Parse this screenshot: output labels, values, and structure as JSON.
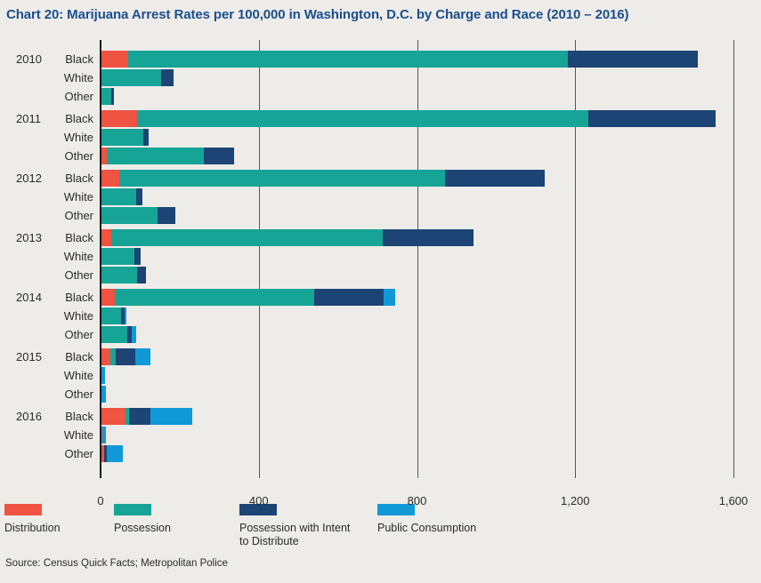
{
  "title": "Chart 20: Marijuana Arrest Rates per 100,000 in Washington, D.C. by Charge and Race (2010 – 2016)",
  "source": "Source: Census Quick Facts; Metropolitan Police",
  "colors": {
    "background": "#EDECE9",
    "title_text": "#1B4E8C",
    "body_text": "#2B2B2B",
    "axis_line": "#1A1A1A",
    "gridline": "#55565A",
    "distribution": "#EF5342",
    "possession": "#16A496",
    "possession_with_intent": "#1C4474",
    "public_consumption": "#1099D6"
  },
  "legend": {
    "items": [
      {
        "label": "Distribution",
        "color_key": "distribution"
      },
      {
        "label": "Possession",
        "color_key": "possession"
      },
      {
        "label": "Possession with Intent to Distribute",
        "color_key": "possession_with_intent"
      },
      {
        "label": "Public Consumption",
        "color_key": "public_consumption"
      }
    ],
    "position": "bottom"
  },
  "chart_data": {
    "type": "bar",
    "orientation": "horizontal",
    "stacked": true,
    "title": "Chart 20: Marijuana Arrest Rates per 100,000 in Washington, D.C. by Charge and Race (2010 – 2016)",
    "unit": "arrests per 100,000",
    "xlim": [
      0,
      1600
    ],
    "grid": "vertical",
    "x_ticks": [
      {
        "value": 0,
        "label": "0"
      },
      {
        "value": 400,
        "label": "400"
      },
      {
        "value": 800,
        "label": "800"
      },
      {
        "value": 1200,
        "label": "1,200"
      },
      {
        "value": 1600,
        "label": "1,600"
      }
    ],
    "series": [
      {
        "name": "Distribution",
        "color_key": "distribution"
      },
      {
        "name": "Possession",
        "color_key": "possession"
      },
      {
        "name": "Possession with Intent to Distribute",
        "color_key": "possession_with_intent"
      },
      {
        "name": "Public Consumption",
        "color_key": "public_consumption"
      }
    ],
    "groups": [
      {
        "year": "2010",
        "rows": [
          {
            "race": "Black",
            "values": [
              69,
              1112,
              328,
              0
            ]
          },
          {
            "race": "White",
            "values": [
              0,
              152,
              32,
              0
            ]
          },
          {
            "race": "Other",
            "values": [
              0,
              28,
              6,
              0
            ]
          }
        ]
      },
      {
        "year": "2011",
        "rows": [
          {
            "race": "Black",
            "values": [
              93,
              1140,
              322,
              0
            ]
          },
          {
            "race": "White",
            "values": [
              0,
              107,
              15,
              0
            ]
          },
          {
            "race": "Other",
            "values": [
              16,
              245,
              77,
              0
            ]
          }
        ]
      },
      {
        "year": "2012",
        "rows": [
          {
            "race": "Black",
            "values": [
              47,
              824,
              253,
              0
            ]
          },
          {
            "race": "White",
            "values": [
              0,
              91,
              15,
              0
            ]
          },
          {
            "race": "Other",
            "values": [
              3,
              142,
              45,
              0
            ]
          }
        ]
      },
      {
        "year": "2013",
        "rows": [
          {
            "race": "Black",
            "values": [
              26,
              688,
              228,
              0
            ]
          },
          {
            "race": "White",
            "values": [
              0,
              86,
              16,
              0
            ]
          },
          {
            "race": "Other",
            "values": [
              0,
              93,
              22,
              0
            ]
          }
        ]
      },
      {
        "year": "2014",
        "rows": [
          {
            "race": "Black",
            "values": [
              37,
              502,
              176,
              31
            ]
          },
          {
            "race": "White",
            "values": [
              3,
              49,
              8,
              5
            ]
          },
          {
            "race": "Other",
            "values": [
              3,
              64,
              11,
              13
            ]
          }
        ]
      },
      {
        "year": "2015",
        "rows": [
          {
            "race": "Black",
            "values": [
              25,
              13,
              49,
              38
            ]
          },
          {
            "race": "White",
            "values": [
              0,
              3,
              0,
              8
            ]
          },
          {
            "race": "Other",
            "values": [
              0,
              2,
              0,
              12
            ]
          }
        ]
      },
      {
        "year": "2016",
        "rows": [
          {
            "race": "Black",
            "values": [
              63,
              8,
              56,
              105
            ]
          },
          {
            "race": "White",
            "values": [
              4,
              0,
              0,
              9
            ]
          },
          {
            "race": "Other",
            "values": [
              9,
              0,
              6,
              41
            ]
          }
        ]
      }
    ]
  }
}
